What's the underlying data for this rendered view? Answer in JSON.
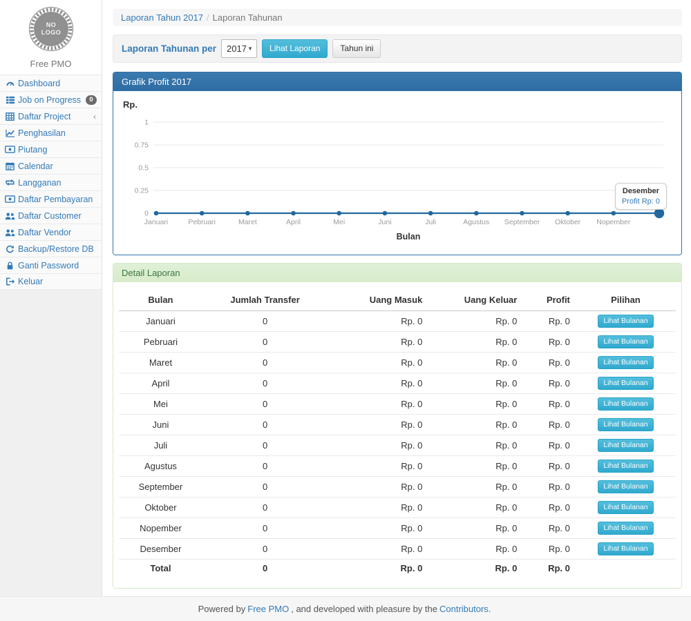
{
  "brand": {
    "logo_text": "NO LOGO",
    "name": "Free PMO"
  },
  "sidebar": {
    "items": [
      {
        "id": "dashboard",
        "icon": "gauge",
        "label": "Dashboard"
      },
      {
        "id": "job-on-progress",
        "icon": "list",
        "label": "Job on Progress",
        "badge": "0"
      },
      {
        "id": "daftar-project",
        "icon": "table",
        "label": "Daftar Project",
        "chevron": "‹"
      },
      {
        "id": "penghasilan",
        "icon": "line-chart",
        "label": "Penghasilan"
      },
      {
        "id": "piutang",
        "icon": "money",
        "label": "Piutang"
      },
      {
        "id": "calendar",
        "icon": "calendar",
        "label": "Calendar"
      },
      {
        "id": "langganan",
        "icon": "retweet",
        "label": "Langganan"
      },
      {
        "id": "daftar-pembayaran",
        "icon": "money",
        "label": "Daftar Pembayaran"
      },
      {
        "id": "daftar-customer",
        "icon": "users",
        "label": "Daftar Customer"
      },
      {
        "id": "daftar-vendor",
        "icon": "users",
        "label": "Daftar Vendor"
      },
      {
        "id": "backup-restore-db",
        "icon": "refresh",
        "label": "Backup/Restore DB"
      },
      {
        "id": "ganti-password",
        "icon": "lock",
        "label": "Ganti Password"
      },
      {
        "id": "keluar",
        "icon": "sign-out",
        "label": "Keluar"
      }
    ]
  },
  "breadcrumb": {
    "link": "Laporan Tahun 2017",
    "separator": "/",
    "current": "Laporan Tahunan"
  },
  "filter_bar": {
    "label": "Laporan Tahunan per",
    "year_select_value": "2017",
    "view_button": "Lihat Laporan",
    "this_year_button": "Tahun ini"
  },
  "chart_panel": {
    "title": "Grafik Profit 2017"
  },
  "chart_data": {
    "type": "line",
    "title": "Grafik Profit 2017",
    "unit_label": "Rp.",
    "xlabel": "Bulan",
    "categories": [
      "Januari",
      "Pebruari",
      "Maret",
      "April",
      "Mei",
      "Juni",
      "Juli",
      "Agustus",
      "September",
      "Oktober",
      "Nopember",
      "Desember"
    ],
    "x_tick_labels_shown": [
      "Januari",
      "Pebruari",
      "Maret",
      "April",
      "Mei",
      "Juni",
      "Juli",
      "Agustus",
      "September",
      "Oktober",
      "Nopember"
    ],
    "series": [
      {
        "name": "Profit",
        "values": [
          0,
          0,
          0,
          0,
          0,
          0,
          0,
          0,
          0,
          0,
          0,
          0
        ]
      }
    ],
    "y_ticks": [
      "0",
      "0.25",
      "0.5",
      "0.75",
      "1"
    ],
    "ylim": [
      0,
      1
    ],
    "grid": true,
    "legend": "none",
    "highlight_last_point": true,
    "tooltip": {
      "title": "Desember",
      "text": "Profit Rp: 0"
    }
  },
  "detail_panel": {
    "title": "Detail Laporan"
  },
  "table": {
    "headers": [
      "Bulan",
      "Jumlah Transfer",
      "Uang Masuk",
      "Uang Keluar",
      "Profit",
      "Pilihan"
    ],
    "action_label": "Lihat Bulanan",
    "rows": [
      {
        "bulan": "Januari",
        "jumlah_transfer": "0",
        "uang_masuk": "Rp. 0",
        "uang_keluar": "Rp. 0",
        "profit": "Rp. 0"
      },
      {
        "bulan": "Pebruari",
        "jumlah_transfer": "0",
        "uang_masuk": "Rp. 0",
        "uang_keluar": "Rp. 0",
        "profit": "Rp. 0"
      },
      {
        "bulan": "Maret",
        "jumlah_transfer": "0",
        "uang_masuk": "Rp. 0",
        "uang_keluar": "Rp. 0",
        "profit": "Rp. 0"
      },
      {
        "bulan": "April",
        "jumlah_transfer": "0",
        "uang_masuk": "Rp. 0",
        "uang_keluar": "Rp. 0",
        "profit": "Rp. 0"
      },
      {
        "bulan": "Mei",
        "jumlah_transfer": "0",
        "uang_masuk": "Rp. 0",
        "uang_keluar": "Rp. 0",
        "profit": "Rp. 0"
      },
      {
        "bulan": "Juni",
        "jumlah_transfer": "0",
        "uang_masuk": "Rp. 0",
        "uang_keluar": "Rp. 0",
        "profit": "Rp. 0"
      },
      {
        "bulan": "Juli",
        "jumlah_transfer": "0",
        "uang_masuk": "Rp. 0",
        "uang_keluar": "Rp. 0",
        "profit": "Rp. 0"
      },
      {
        "bulan": "Agustus",
        "jumlah_transfer": "0",
        "uang_masuk": "Rp. 0",
        "uang_keluar": "Rp. 0",
        "profit": "Rp. 0"
      },
      {
        "bulan": "September",
        "jumlah_transfer": "0",
        "uang_masuk": "Rp. 0",
        "uang_keluar": "Rp. 0",
        "profit": "Rp. 0"
      },
      {
        "bulan": "Oktober",
        "jumlah_transfer": "0",
        "uang_masuk": "Rp. 0",
        "uang_keluar": "Rp. 0",
        "profit": "Rp. 0"
      },
      {
        "bulan": "Nopember",
        "jumlah_transfer": "0",
        "uang_masuk": "Rp. 0",
        "uang_keluar": "Rp. 0",
        "profit": "Rp. 0"
      },
      {
        "bulan": "Desember",
        "jumlah_transfer": "0",
        "uang_masuk": "Rp. 0",
        "uang_keluar": "Rp. 0",
        "profit": "Rp. 0"
      }
    ],
    "total": {
      "bulan": "Total",
      "jumlah_transfer": "0",
      "uang_masuk": "Rp. 0",
      "uang_keluar": "Rp. 0",
      "profit": "Rp. 0"
    }
  },
  "footer": {
    "prefix": "Powered by",
    "link1": "Free PMO",
    "middle": ", and developed with pleasure by the",
    "link2": "Contributors."
  },
  "colors": {
    "primary": "#337ab7",
    "primary_dark": "#2e6da4",
    "info_button": "#39b3d7",
    "success_bg": "#dff0d8",
    "success_text": "#3c763d",
    "chart_line": "#21689f",
    "badge_bg": "#6b6b6b"
  }
}
